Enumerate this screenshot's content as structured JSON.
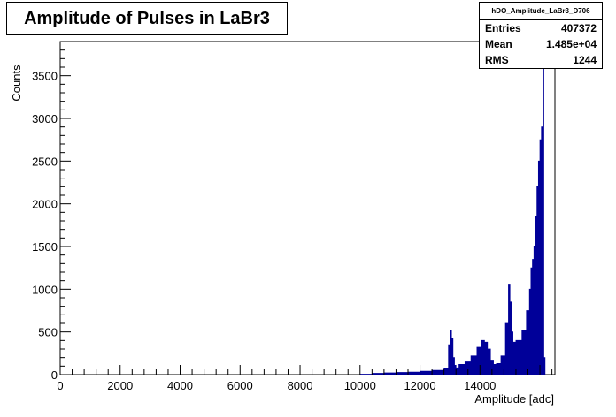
{
  "chart_data": {
    "type": "histogram",
    "title": "Amplitude of Pulses in LaBr3",
    "xlabel": "Amplitude [adc]",
    "ylabel": "Counts",
    "xlim": [
      0,
      16500
    ],
    "ylim": [
      0,
      3900
    ],
    "xticks": [
      0,
      2000,
      4000,
      6000,
      8000,
      10000,
      12000,
      14000
    ],
    "yticks": [
      0,
      500,
      1000,
      1500,
      2000,
      2500,
      3000,
      3500
    ],
    "fill_color": "#000099",
    "stats": {
      "name": "hDO_Amplitude_LaBr3_D706",
      "rows": [
        {
          "label": "Entries",
          "value": "407372"
        },
        {
          "label": "Mean",
          "value": "1.485e+04"
        },
        {
          "label": "RMS",
          "value": "1244"
        }
      ]
    },
    "bins": {
      "x": [
        10000,
        10400,
        10800,
        11200,
        11600,
        12000,
        12400,
        12800,
        12950,
        13000,
        13050,
        13100,
        13150,
        13200,
        13300,
        13500,
        13700,
        13900,
        14050,
        14150,
        14250,
        14350,
        14450,
        14550,
        14700,
        14850,
        14950,
        15000,
        15050,
        15100,
        15200,
        15400,
        15550,
        15650,
        15700,
        15750,
        15800,
        15850,
        15900,
        15950,
        16000,
        16050,
        16080,
        16100,
        16130
      ],
      "y": [
        5,
        15,
        20,
        25,
        30,
        40,
        50,
        70,
        350,
        520,
        420,
        200,
        110,
        80,
        120,
        150,
        220,
        320,
        400,
        380,
        300,
        160,
        120,
        130,
        220,
        600,
        1050,
        850,
        500,
        380,
        400,
        520,
        750,
        1000,
        1250,
        1350,
        1500,
        1850,
        2200,
        2500,
        2750,
        2900,
        2400,
        3800,
        200
      ]
    }
  }
}
